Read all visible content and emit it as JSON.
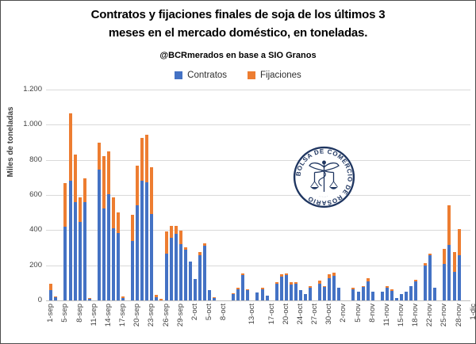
{
  "title": {
    "line1": "Contratos y fijaciones finales de soja de los últimos 3",
    "line2": "meses en el mercado doméstico, en toneladas.",
    "subtitle": "@BCRmerados en base a SIO Granos"
  },
  "legend": {
    "items": [
      {
        "label": "Contratos",
        "color": "#4472C4"
      },
      {
        "label": "Fijaciones",
        "color": "#ED7D31"
      }
    ]
  },
  "logo": {
    "ring_text": "BOLSA DE COMERCIO DE ROSARIO"
  },
  "chart_data": {
    "type": "bar",
    "stacked": true,
    "title": "Contratos y fijaciones finales de soja de los últimos 3 meses en el mercado doméstico, en toneladas.",
    "subtitle": "@BCRmerados en base a SIO Granos",
    "xlabel": "",
    "ylabel": "Miles de toneladas",
    "ylim": [
      0,
      1200
    ],
    "grid": true,
    "legend_position": "top",
    "series_names": [
      "Contratos",
      "Fijaciones"
    ],
    "y_ticks": [
      {
        "value": 0,
        "label": "0"
      },
      {
        "value": 200,
        "label": "200"
      },
      {
        "value": 400,
        "label": "400"
      },
      {
        "value": 600,
        "label": "600"
      },
      {
        "value": 800,
        "label": "800"
      },
      {
        "value": 1000,
        "label": "1.000"
      },
      {
        "value": 1200,
        "label": "1.200"
      }
    ],
    "slots": 89,
    "x_tick_labels_schema": [
      "slot",
      "label"
    ],
    "x_tick_labels": [
      [
        0,
        "1-sep"
      ],
      [
        3,
        "5-sep"
      ],
      [
        6,
        "8-sep"
      ],
      [
        9,
        "11-sep"
      ],
      [
        12,
        "14-sep"
      ],
      [
        15,
        "17-sep"
      ],
      [
        18,
        "20-sep"
      ],
      [
        21,
        "23-sep"
      ],
      [
        24,
        "26-sep"
      ],
      [
        27,
        "29-sep"
      ],
      [
        30,
        "2-oct"
      ],
      [
        33,
        "5-oct"
      ],
      [
        36,
        "8-oct"
      ],
      [
        42,
        "13-oct"
      ],
      [
        46,
        "17-oct"
      ],
      [
        49,
        "20-oct"
      ],
      [
        52,
        "24-oct"
      ],
      [
        55,
        "27-oct"
      ],
      [
        58,
        "30-oct"
      ],
      [
        61,
        "2-nov"
      ],
      [
        64,
        "5-nov"
      ],
      [
        67,
        "8-nov"
      ],
      [
        70,
        "11-nov"
      ],
      [
        73,
        "15-nov"
      ],
      [
        76,
        "18-nov"
      ],
      [
        79,
        "22-nov"
      ],
      [
        82,
        "25-nov"
      ],
      [
        85,
        "28-nov"
      ],
      [
        88,
        "1-dic"
      ]
    ],
    "bars_schema": [
      "slot",
      "contratos",
      "fijaciones"
    ],
    "bars": [
      [
        0,
        57,
        38
      ],
      [
        1,
        18,
        4
      ],
      [
        3,
        419,
        248
      ],
      [
        4,
        682,
        384
      ],
      [
        5,
        558,
        274
      ],
      [
        6,
        445,
        143
      ],
      [
        7,
        558,
        139
      ],
      [
        8,
        12,
        3
      ],
      [
        10,
        743,
        157
      ],
      [
        11,
        525,
        297
      ],
      [
        12,
        606,
        241
      ],
      [
        13,
        410,
        178
      ],
      [
        14,
        384,
        116
      ],
      [
        15,
        15,
        8
      ],
      [
        17,
        339,
        147
      ],
      [
        18,
        543,
        222
      ],
      [
        19,
        683,
        240
      ],
      [
        20,
        674,
        271
      ],
      [
        21,
        490,
        267
      ],
      [
        22,
        20,
        10
      ],
      [
        23,
        0,
        8
      ],
      [
        24,
        266,
        125
      ],
      [
        25,
        356,
        68
      ],
      [
        26,
        379,
        45
      ],
      [
        27,
        320,
        79
      ],
      [
        28,
        290,
        12
      ],
      [
        29,
        221,
        0
      ],
      [
        30,
        120,
        0
      ],
      [
        31,
        258,
        16
      ],
      [
        32,
        310,
        16
      ],
      [
        33,
        60,
        0
      ],
      [
        34,
        18,
        2
      ],
      [
        38,
        35,
        5
      ],
      [
        39,
        65,
        8
      ],
      [
        40,
        143,
        10
      ],
      [
        41,
        58,
        4
      ],
      [
        43,
        45,
        0
      ],
      [
        44,
        65,
        9
      ],
      [
        45,
        26,
        0
      ],
      [
        47,
        95,
        10
      ],
      [
        48,
        135,
        12
      ],
      [
        49,
        143,
        10
      ],
      [
        50,
        90,
        12
      ],
      [
        51,
        93,
        12
      ],
      [
        52,
        57,
        0
      ],
      [
        53,
        35,
        0
      ],
      [
        54,
        71,
        12
      ],
      [
        56,
        93,
        20
      ],
      [
        57,
        75,
        5
      ],
      [
        58,
        128,
        20
      ],
      [
        59,
        138,
        20
      ],
      [
        60,
        70,
        0
      ],
      [
        63,
        62,
        12
      ],
      [
        64,
        50,
        0
      ],
      [
        65,
        75,
        8
      ],
      [
        66,
        110,
        15
      ],
      [
        67,
        50,
        0
      ],
      [
        69,
        50,
        0
      ],
      [
        70,
        72,
        8
      ],
      [
        71,
        55,
        7
      ],
      [
        72,
        12,
        0
      ],
      [
        73,
        38,
        0
      ],
      [
        74,
        50,
        0
      ],
      [
        75,
        82,
        0
      ],
      [
        76,
        110,
        8
      ],
      [
        78,
        200,
        10
      ],
      [
        79,
        258,
        6
      ],
      [
        80,
        72,
        0
      ],
      [
        82,
        208,
        85
      ],
      [
        83,
        318,
        224
      ],
      [
        84,
        162,
        112
      ],
      [
        85,
        259,
        147
      ]
    ]
  }
}
